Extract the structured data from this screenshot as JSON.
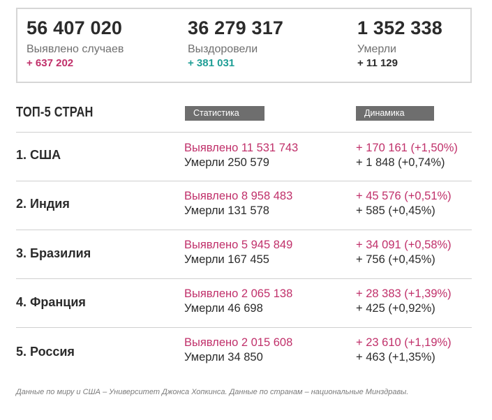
{
  "summary": {
    "cases": {
      "value": "56 407 020",
      "label": "Выявлено случаев",
      "delta": "+ 637 202"
    },
    "recovered": {
      "value": "36 279 317",
      "label": "Выздоровели",
      "delta": "+ 381 031"
    },
    "deaths": {
      "value": "1 352 338",
      "label": "Умерли",
      "delta": "+ 11 129"
    }
  },
  "top": {
    "title": "ТОП-5 СТРАН",
    "stats_label": "Статистика",
    "dynamics_label": "Динамика",
    "countries": [
      {
        "name": "1. США",
        "cases": "Выявлено 11 531 743",
        "deaths": "Умерли 250 579",
        "cases_delta": "+ 170 161 (+1,50%)",
        "deaths_delta": "+ 1 848 (+0,74%)"
      },
      {
        "name": "2. Индия",
        "cases": "Выявлено 8 958 483",
        "deaths": "Умерли 131 578",
        "cases_delta": "+ 45 576 (+0,51%)",
        "deaths_delta": "+ 585 (+0,45%)"
      },
      {
        "name": "3. Бразилия",
        "cases": "Выявлено 5 945 849",
        "deaths": "Умерли 167 455",
        "cases_delta": "+ 34 091 (+0,58%)",
        "deaths_delta": "+ 756 (+0,45%)"
      },
      {
        "name": "4. Франция",
        "cases": "Выявлено 2 065 138",
        "deaths": "Умерли 46 698",
        "cases_delta": "+ 28 383 (+1,39%)",
        "deaths_delta": "+ 425 (+0,92%)"
      },
      {
        "name": "5. Россия",
        "cases": "Выявлено 2 015 608",
        "deaths": "Умерли 34 850",
        "cases_delta": "+ 23 610 (+1,19%)",
        "deaths_delta": "+ 463 (+1,35%)"
      }
    ]
  },
  "footnote": "Данные по миру и США – Университет Джонса Хопкинса. Данные по странам – национальные Минздравы.",
  "colors": {
    "cases": "#c0306a",
    "recovered": "#1f9e96",
    "deaths": "#2b2b2b",
    "pill": "#6e6e6e",
    "border": "#d6d6d6"
  }
}
